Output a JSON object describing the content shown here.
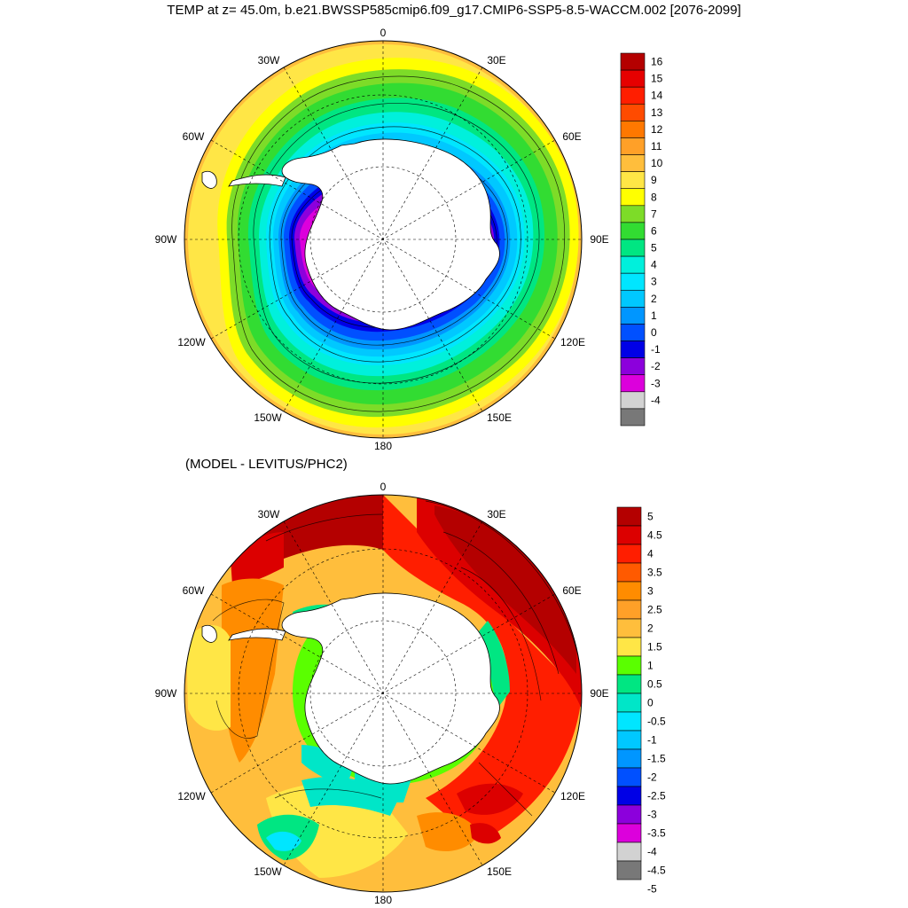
{
  "title": "TEMP at z=  45.0m, b.e21.BWSSP585cmip6.f09_g17.CMIP6-SSP5-8.5-WACCM.002 [2076-2099]",
  "diff_title": "(MODEL - LEVITUS/PHC2)",
  "maps": [
    {
      "id": "temp",
      "lon_labels": {
        "n": "0",
        "ne1": "30E",
        "ne2": "60E",
        "e": "90E",
        "se1": "120E",
        "se2": "150E",
        "s": "180",
        "sw2": "150W",
        "sw1": "120W",
        "w": "90W",
        "nw2": "60W",
        "nw1": "30W"
      },
      "colorbar": {
        "labels": [
          "16",
          "15",
          "14",
          "13",
          "12",
          "11",
          "10",
          "9",
          "8",
          "7",
          "6",
          "5",
          "4",
          "3",
          "2",
          "1",
          "0",
          "-1",
          "-2",
          "-3",
          "-4"
        ],
        "colors": [
          "#b40000",
          "#e60000",
          "#ff1e00",
          "#ff4b00",
          "#ff7800",
          "#ffa028",
          "#ffbe3c",
          "#ffe646",
          "#ffff00",
          "#7ddc28",
          "#32dc32",
          "#00e682",
          "#00f0dc",
          "#00e6ff",
          "#00c8ff",
          "#0096ff",
          "#0050ff",
          "#0000e6",
          "#8c00dc",
          "#dc00dc",
          "#d2d2d2",
          "#787878"
        ]
      }
    },
    {
      "id": "diff",
      "lon_labels": {
        "n": "0",
        "ne1": "30E",
        "ne2": "60E",
        "e": "90E",
        "se1": "120E",
        "se2": "150E",
        "s": "180",
        "sw2": "150W",
        "sw1": "120W",
        "w": "90W",
        "nw2": "60W",
        "nw1": "30W"
      },
      "colorbar": {
        "labels": [
          "5",
          "4.5",
          "4",
          "3.5",
          "3",
          "2.5",
          "2",
          "1.5",
          "1",
          "0.5",
          "0",
          "-0.5",
          "-1",
          "-1.5",
          "-2",
          "-2.5",
          "-3",
          "-3.5",
          "-4",
          "-4.5",
          "-5"
        ],
        "colors": [
          "#b40000",
          "#dc0000",
          "#ff1e00",
          "#ff5a00",
          "#ff8c00",
          "#ffa028",
          "#ffbe3c",
          "#ffe646",
          "#5aff00",
          "#00e682",
          "#00e6c8",
          "#00e6ff",
          "#00c8ff",
          "#0096ff",
          "#0050ff",
          "#0000e6",
          "#8c00dc",
          "#dc00dc",
          "#d2d2d2",
          "#787878"
        ]
      }
    }
  ]
}
